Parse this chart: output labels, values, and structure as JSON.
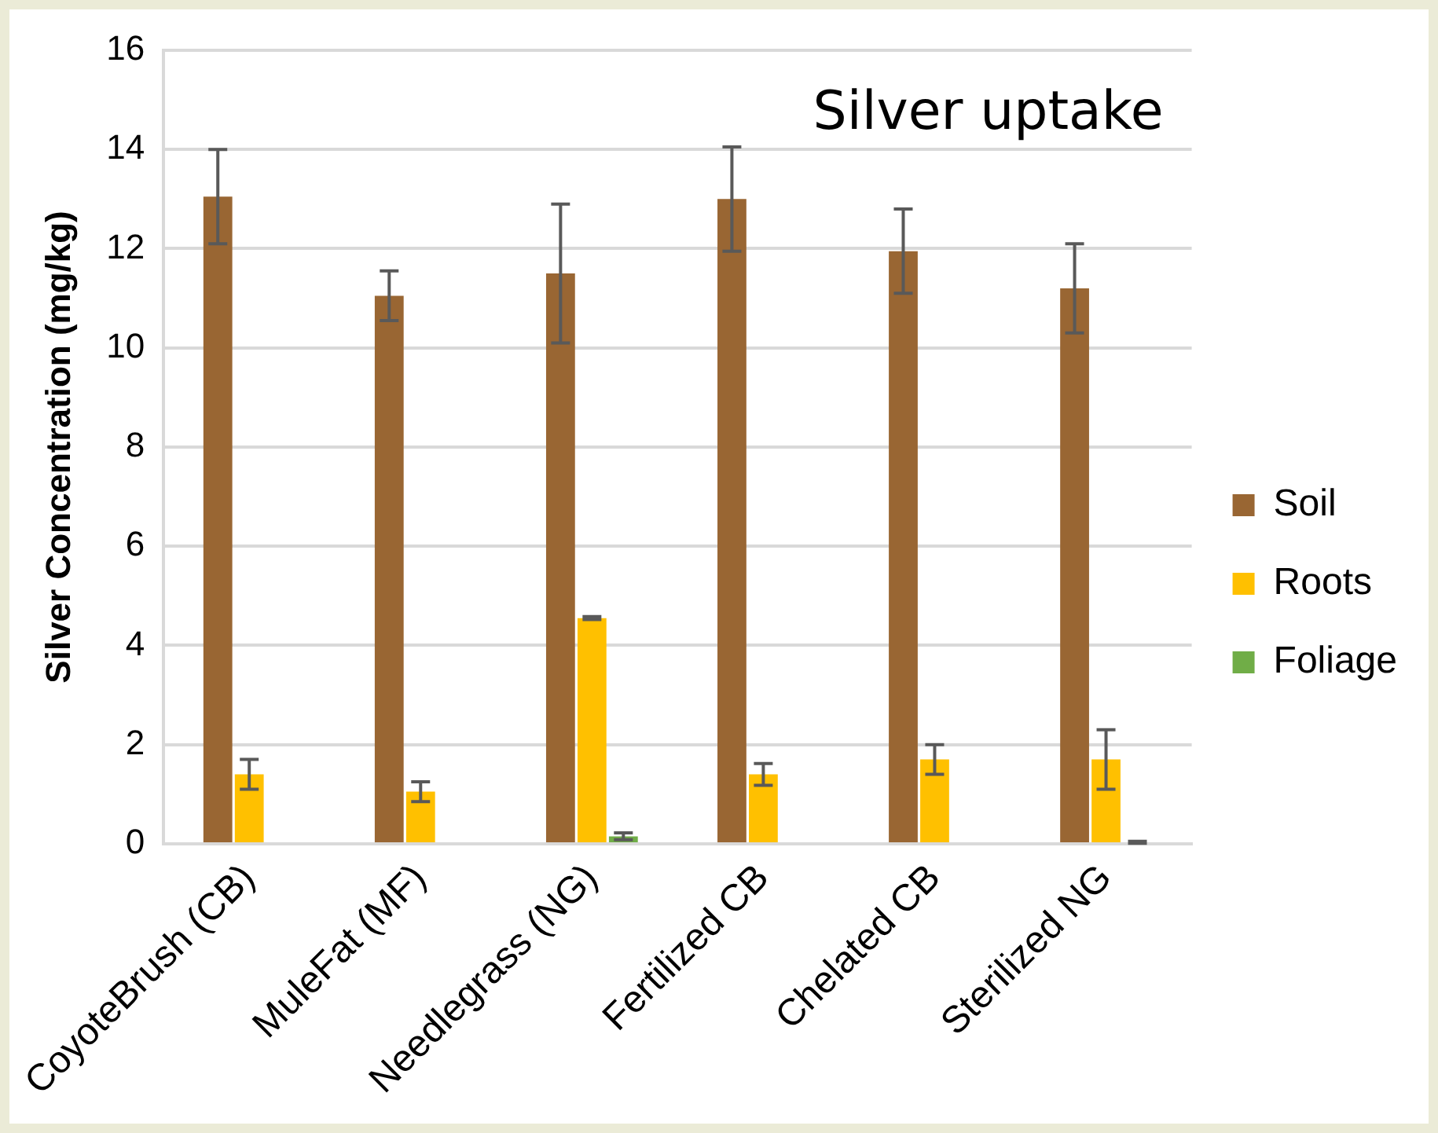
{
  "chart_data": {
    "type": "bar",
    "title": "Silver uptake",
    "ylabel": "Silver Concentration (mg/kg)",
    "categories": [
      "CoyoteBrush (CB)",
      "MuleFat (MF)",
      "Needlegrass (NG)",
      "Fertilized CB",
      "Chelated CB",
      "Sterilized NG"
    ],
    "series": [
      {
        "name": "Soil",
        "color": "#996633",
        "values": [
          13.05,
          11.05,
          11.5,
          13.0,
          11.95,
          11.2
        ],
        "errors": [
          0.95,
          0.5,
          1.4,
          1.05,
          0.85,
          0.9
        ]
      },
      {
        "name": "Roots",
        "color": "#ffc000",
        "values": [
          1.4,
          1.05,
          4.55,
          1.4,
          1.7,
          1.7
        ],
        "errors": [
          0.3,
          0.2,
          0.03,
          0.22,
          0.3,
          0.6
        ]
      },
      {
        "name": "Foliage",
        "color": "#70ad47",
        "values": [
          null,
          null,
          0.15,
          null,
          null,
          0.03
        ],
        "errors": [
          null,
          null,
          0.07,
          null,
          null,
          0.02
        ]
      }
    ],
    "ylim": [
      0,
      16
    ],
    "yticks": [
      0,
      2,
      4,
      6,
      8,
      10,
      12,
      14,
      16
    ],
    "grid": "y",
    "legend": "right"
  }
}
